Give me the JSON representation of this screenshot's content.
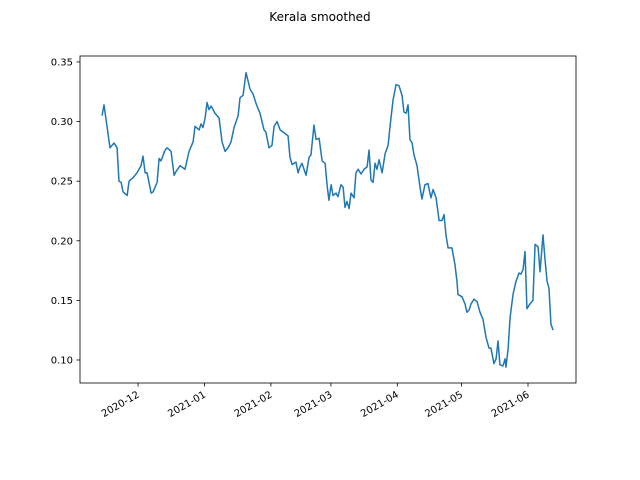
{
  "chart_data": {
    "type": "line",
    "title": "Kerala smoothed",
    "xlim": [
      18569.9,
      18801.4
    ],
    "xticks": [
      {
        "value": 18597,
        "label": "2020-12"
      },
      {
        "value": 18628,
        "label": "2021-01"
      },
      {
        "value": 18659,
        "label": "2021-02"
      },
      {
        "value": 18687,
        "label": "2021-03"
      },
      {
        "value": 18718,
        "label": "2021-04"
      },
      {
        "value": 18748,
        "label": "2021-05"
      },
      {
        "value": 18779,
        "label": "2021-06"
      }
    ],
    "ylim": [
      0.0807,
      0.355
    ],
    "yticks": [
      {
        "value": 0.1,
        "label": "0.10"
      },
      0.15,
      {
        "value": 0.2,
        "label": "0.20"
      },
      0.25,
      {
        "value": 0.3,
        "label": "0.30"
      },
      0.35
    ],
    "grid": false,
    "x": [
      18580.2,
      18581.1,
      18583.9,
      18585.8,
      18587.2,
      18588.1,
      18589.1,
      18590.0,
      18591.9,
      18592.8,
      18594.7,
      18596.5,
      18598.4,
      18599.3,
      18600.3,
      18601.2,
      18603.1,
      18604.0,
      18605.9,
      18606.8,
      18607.7,
      18609.6,
      18610.5,
      18612.4,
      18613.8,
      18614.7,
      18616.6,
      18618.9,
      18620.8,
      18622.7,
      18623.6,
      18625.5,
      18626.4,
      18627.3,
      18628.3,
      18629.2,
      18630.1,
      18631.1,
      18632.9,
      18634.8,
      18636.2,
      18637.6,
      18639.0,
      18640.4,
      18641.8,
      18643.7,
      18644.6,
      18646.0,
      18647.4,
      18649.3,
      18650.7,
      18652.1,
      18653.9,
      18655.8,
      18656.7,
      18658.1,
      18659.5,
      18660.5,
      18661.9,
      18663.3,
      18665.6,
      18667.0,
      18667.9,
      18668.9,
      18670.7,
      18671.7,
      18672.6,
      18673.5,
      18675.4,
      18676.8,
      18677.7,
      18679.1,
      18680.1,
      18681.5,
      18682.9,
      18684.3,
      18685.2,
      18686.1,
      18687.1,
      18688.0,
      18689.4,
      18690.3,
      18691.7,
      18692.7,
      18693.6,
      18694.5,
      18695.5,
      18696.4,
      18697.8,
      18698.7,
      18699.7,
      18701.1,
      18702.5,
      18703.9,
      18704.8,
      18705.7,
      18706.7,
      18707.6,
      18708.5,
      18709.5,
      18710.9,
      18712.3,
      18713.7,
      18714.6,
      18716.0,
      18717.4,
      18718.8,
      18720.2,
      18721.1,
      18722.1,
      18723.0,
      18723.9,
      18724.9,
      18725.8,
      18727.2,
      18728.6,
      18729.5,
      18730.9,
      18732.3,
      18733.7,
      18734.7,
      18736.1,
      18737.5,
      18738.9,
      18739.8,
      18740.7,
      18741.7,
      18743.5,
      18744.9,
      18745.9,
      18746.3,
      18748.2,
      18749.6,
      18750.5,
      18751.5,
      18752.4,
      18753.8,
      18755.2,
      18756.6,
      18758.0,
      18759.4,
      18760.8,
      18761.7,
      18763.1,
      18764.1,
      18765.0,
      18765.9,
      18767.3,
      18768.3,
      18768.7,
      18769.7,
      18770.6,
      18772.0,
      18773.4,
      18774.8,
      18775.7,
      18776.7,
      18777.6,
      18778.5,
      18779.9,
      18781.3,
      18782.3,
      18783.7,
      18784.6,
      18786.0,
      18786.9,
      18787.9,
      18788.8,
      18789.7,
      18790.7
    ],
    "series": [
      {
        "color": "#1f77b4",
        "values": [
          0.305,
          0.314,
          0.278,
          0.282,
          0.278,
          0.25,
          0.249,
          0.241,
          0.238,
          0.25,
          0.253,
          0.257,
          0.263,
          0.271,
          0.257,
          0.257,
          0.24,
          0.241,
          0.249,
          0.269,
          0.267,
          0.276,
          0.278,
          0.275,
          0.255,
          0.258,
          0.263,
          0.26,
          0.275,
          0.283,
          0.296,
          0.293,
          0.298,
          0.295,
          0.303,
          0.316,
          0.31,
          0.313,
          0.307,
          0.303,
          0.283,
          0.275,
          0.278,
          0.283,
          0.295,
          0.305,
          0.32,
          0.322,
          0.341,
          0.327,
          0.323,
          0.315,
          0.307,
          0.293,
          0.291,
          0.278,
          0.28,
          0.296,
          0.3,
          0.293,
          0.29,
          0.288,
          0.27,
          0.264,
          0.266,
          0.257,
          0.262,
          0.265,
          0.255,
          0.27,
          0.272,
          0.297,
          0.285,
          0.286,
          0.267,
          0.265,
          0.247,
          0.234,
          0.247,
          0.238,
          0.24,
          0.237,
          0.247,
          0.245,
          0.228,
          0.233,
          0.227,
          0.24,
          0.236,
          0.257,
          0.26,
          0.256,
          0.26,
          0.262,
          0.276,
          0.251,
          0.249,
          0.265,
          0.26,
          0.268,
          0.257,
          0.273,
          0.28,
          0.296,
          0.318,
          0.331,
          0.33,
          0.322,
          0.308,
          0.307,
          0.314,
          0.285,
          0.282,
          0.272,
          0.263,
          0.245,
          0.235,
          0.247,
          0.248,
          0.236,
          0.243,
          0.236,
          0.217,
          0.217,
          0.222,
          0.205,
          0.194,
          0.194,
          0.18,
          0.165,
          0.155,
          0.153,
          0.147,
          0.14,
          0.142,
          0.147,
          0.151,
          0.149,
          0.14,
          0.134,
          0.119,
          0.11,
          0.11,
          0.097,
          0.101,
          0.116,
          0.096,
          0.095,
          0.101,
          0.094,
          0.109,
          0.135,
          0.155,
          0.166,
          0.173,
          0.172,
          0.176,
          0.191,
          0.143,
          0.147,
          0.15,
          0.197,
          0.195,
          0.174,
          0.205,
          0.185,
          0.166,
          0.16,
          0.13,
          0.125
        ]
      }
    ]
  }
}
